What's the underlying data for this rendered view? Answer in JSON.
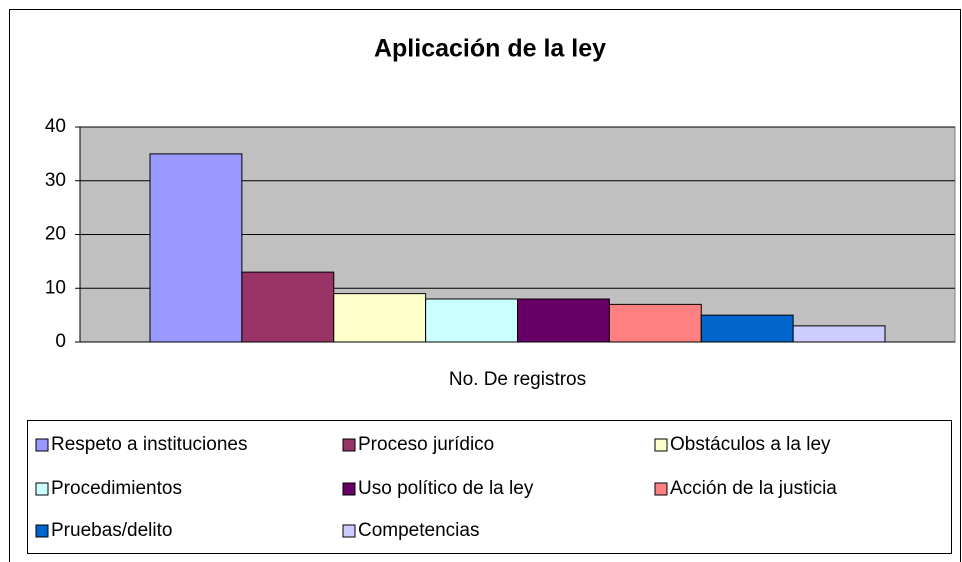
{
  "chart_data": {
    "type": "bar",
    "title": "Aplicación de la ley",
    "categories": [
      "No. De registros"
    ],
    "series": [
      {
        "name": "Respeto a instituciones",
        "color": "#9999ff",
        "values": [
          35
        ]
      },
      {
        "name": "Proceso jurídico",
        "color": "#993366",
        "values": [
          13
        ]
      },
      {
        "name": "Obstáculos a la ley",
        "color": "#ffffcc",
        "values": [
          9
        ]
      },
      {
        "name": "Procedimientos",
        "color": "#ccffff",
        "values": [
          8
        ]
      },
      {
        "name": "Uso político de la ley",
        "color": "#660066",
        "values": [
          8
        ]
      },
      {
        "name": "Acción de la justicia",
        "color": "#ff8080",
        "values": [
          7
        ]
      },
      {
        "name": "Pruebas/delito",
        "color": "#0066cc",
        "values": [
          5
        ]
      },
      {
        "name": "Competencias",
        "color": "#ccccff",
        "values": [
          3
        ]
      }
    ],
    "ylim": [
      0,
      40
    ],
    "yticks": [
      0,
      10,
      20,
      30,
      40
    ],
    "grid": true,
    "plot_background": "#c0c0c0",
    "legend": "bottom"
  }
}
